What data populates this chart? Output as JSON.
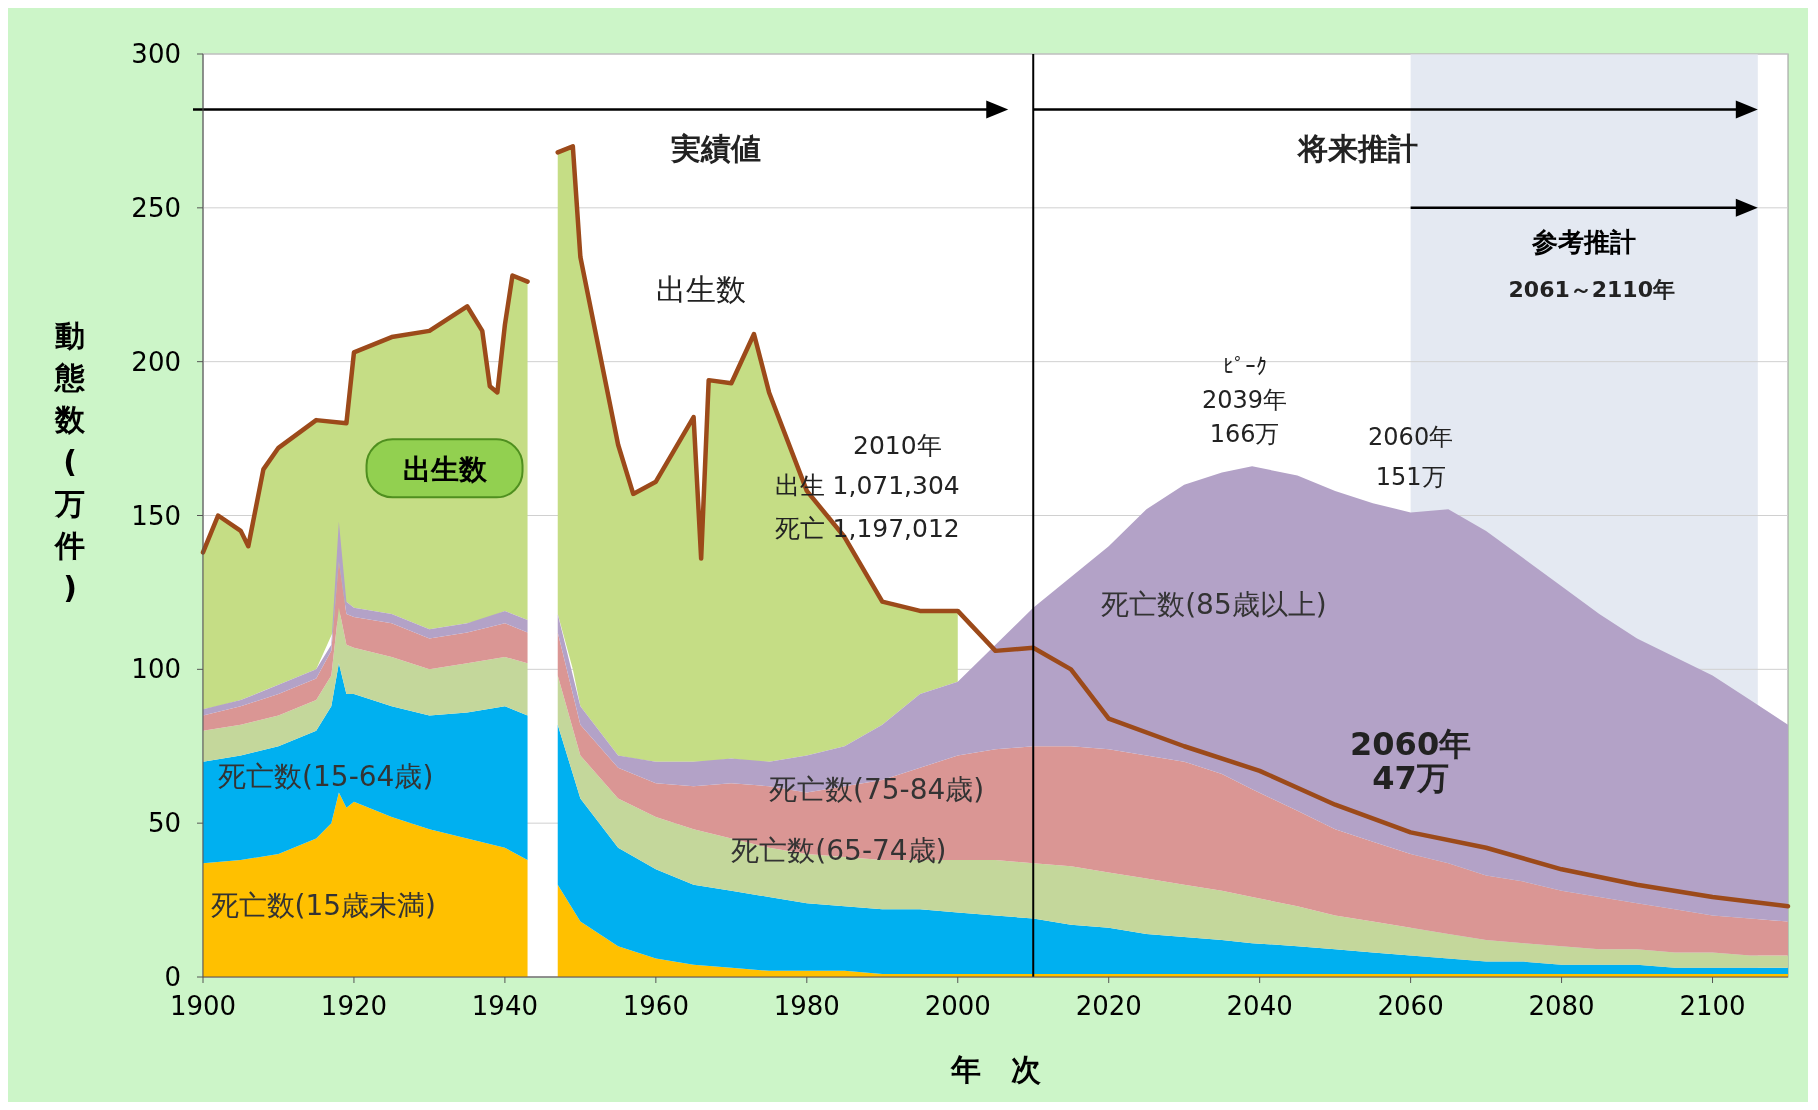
{
  "chart_data": {
    "type": "area",
    "stacked": true,
    "xlabel": "年　次",
    "ylabel": "動態数(万件)",
    "xlim": [
      1900,
      2110
    ],
    "ylim": [
      0,
      300
    ],
    "xticks": [
      1900,
      1920,
      1940,
      1960,
      1980,
      2000,
      2020,
      2040,
      2060,
      2080,
      2100
    ],
    "yticks": [
      0,
      50,
      100,
      150,
      200,
      250,
      300
    ],
    "grid": "y",
    "ref_lines": [
      {
        "axis": "x",
        "value": 2010,
        "color": "#000000"
      }
    ],
    "bands": [
      {
        "axis": "x",
        "from": 2060,
        "to": 2106,
        "label": "参考推計",
        "color": "#e4e9f2"
      }
    ],
    "annotations": [
      "実績値",
      "将来推計",
      "2061～2110年",
      "2010年",
      "出生 1,071,304",
      "死亡 1,197,012",
      "ﾋﾟｰｸ",
      "2039年",
      "166万",
      "2060年",
      "151万",
      "2060年",
      "47万",
      "出生数"
    ],
    "series": [
      {
        "name": "死亡数(15歳未満)",
        "color": "#ffc000",
        "x": [
          1900,
          1905,
          1910,
          1915,
          1917,
          1918,
          1919,
          1920,
          1925,
          1930,
          1935,
          1940,
          1943,
          1944,
          1946,
          1947,
          1950,
          1955,
          1960,
          1965,
          1970,
          1975,
          1980,
          1985,
          1990,
          1995,
          2000,
          2005,
          2010,
          2015,
          2020,
          2025,
          2030,
          2035,
          2039,
          2045,
          2050,
          2055,
          2060,
          2065,
          2070,
          2075,
          2080,
          2085,
          2090,
          2095,
          2100,
          2105,
          2110
        ],
        "values": [
          37,
          38,
          40,
          45,
          50,
          60,
          55,
          57,
          52,
          48,
          45,
          42,
          38,
          null,
          null,
          30,
          18,
          10,
          6,
          4,
          3,
          2,
          2,
          2,
          1,
          1,
          1,
          1,
          1,
          1,
          1,
          1,
          1,
          1,
          1,
          1,
          1,
          1,
          1,
          1,
          1,
          1,
          1,
          1,
          1,
          1,
          1,
          1,
          1
        ]
      },
      {
        "name": "死亡数(15-64歳)",
        "color": "#00b0f0",
        "x": [
          1900,
          1905,
          1910,
          1915,
          1917,
          1918,
          1919,
          1920,
          1925,
          1930,
          1935,
          1940,
          1943,
          1944,
          1946,
          1947,
          1950,
          1955,
          1960,
          1965,
          1970,
          1975,
          1980,
          1985,
          1990,
          1995,
          2000,
          2005,
          2010,
          2015,
          2020,
          2025,
          2030,
          2035,
          2039,
          2045,
          2050,
          2055,
          2060,
          2065,
          2070,
          2075,
          2080,
          2085,
          2090,
          2095,
          2100,
          2105,
          2110
        ],
        "values": [
          33,
          34,
          35,
          35,
          38,
          42,
          37,
          35,
          36,
          37,
          41,
          46,
          47,
          null,
          null,
          52,
          40,
          32,
          29,
          26,
          25,
          24,
          22,
          21,
          21,
          21,
          20,
          19,
          18,
          16,
          15,
          13,
          12,
          11,
          10,
          9,
          8,
          7,
          6,
          5,
          4,
          4,
          3,
          3,
          3,
          2,
          2,
          2,
          2
        ]
      },
      {
        "name": "死亡数(65-74歳)",
        "color": "#c4d79b",
        "x": [
          1900,
          1905,
          1910,
          1915,
          1917,
          1918,
          1919,
          1920,
          1925,
          1930,
          1935,
          1940,
          1943,
          1944,
          1946,
          1947,
          1950,
          1955,
          1960,
          1965,
          1970,
          1975,
          1980,
          1985,
          1990,
          1995,
          2000,
          2005,
          2010,
          2015,
          2020,
          2025,
          2030,
          2035,
          2039,
          2045,
          2050,
          2055,
          2060,
          2065,
          2070,
          2075,
          2080,
          2085,
          2090,
          2095,
          2100,
          2105,
          2110
        ],
        "values": [
          10,
          10,
          10,
          10,
          10,
          18,
          16,
          15,
          16,
          15,
          16,
          16,
          17,
          null,
          null,
          16,
          14,
          16,
          17,
          18,
          17,
          16,
          16,
          16,
          16,
          16,
          17,
          18,
          18,
          19,
          18,
          18,
          17,
          16,
          15,
          13,
          11,
          10,
          9,
          8,
          7,
          6,
          6,
          5,
          5,
          5,
          5,
          4,
          4
        ]
      },
      {
        "name": "死亡数(75-84歳)",
        "color": "#da9694",
        "x": [
          1900,
          1905,
          1910,
          1915,
          1917,
          1918,
          1919,
          1920,
          1925,
          1930,
          1935,
          1940,
          1943,
          1944,
          1946,
          1947,
          1950,
          1955,
          1960,
          1965,
          1970,
          1975,
          1980,
          1985,
          1990,
          1995,
          2000,
          2005,
          2010,
          2015,
          2020,
          2025,
          2030,
          2035,
          2039,
          2045,
          2050,
          2055,
          2060,
          2065,
          2070,
          2075,
          2080,
          2085,
          2090,
          2095,
          2100,
          2105,
          2110
        ],
        "values": [
          5,
          6,
          7,
          7,
          8,
          15,
          10,
          10,
          11,
          10,
          10,
          11,
          10,
          null,
          null,
          14,
          10,
          10,
          11,
          14,
          18,
          20,
          20,
          23,
          26,
          30,
          34,
          36,
          38,
          39,
          40,
          40,
          40,
          38,
          35,
          31,
          28,
          26,
          24,
          23,
          21,
          20,
          18,
          17,
          15,
          14,
          12,
          12,
          11
        ]
      },
      {
        "name": "死亡数(85歳以上)",
        "color": "#b3a2c7",
        "x": [
          1900,
          1905,
          1910,
          1915,
          1917,
          1918,
          1919,
          1920,
          1925,
          1930,
          1935,
          1940,
          1943,
          1944,
          1946,
          1947,
          1950,
          1955,
          1960,
          1965,
          1970,
          1975,
          1980,
          1985,
          1990,
          1995,
          2000,
          2005,
          2010,
          2015,
          2020,
          2025,
          2030,
          2035,
          2039,
          2045,
          2050,
          2055,
          2060,
          2065,
          2070,
          2075,
          2080,
          2085,
          2090,
          2095,
          2100,
          2105,
          2110
        ],
        "values": [
          2,
          2,
          3,
          3,
          2,
          13,
          4,
          3,
          3,
          3,
          3,
          4,
          4,
          null,
          null,
          6,
          6,
          4,
          7,
          8,
          8,
          8,
          12,
          13,
          18,
          24,
          24,
          34,
          45,
          55,
          66,
          80,
          90,
          98,
          105,
          109,
          110,
          110,
          111,
          115,
          112,
          105,
          99,
          92,
          86,
          82,
          78,
          71,
          64
        ]
      },
      {
        "name": "出生数",
        "type": "line",
        "color": "#9c4a1a",
        "x": [
          1900,
          1902,
          1905,
          1906,
          1908,
          1910,
          1915,
          1919,
          1920,
          1925,
          1930,
          1935,
          1937,
          1938,
          1939,
          1940,
          1941,
          1943,
          1944,
          1946,
          1947,
          1949,
          1950,
          1955,
          1957,
          1960,
          1965,
          1966,
          1967,
          1970,
          1973,
          1975,
          1980,
          1985,
          1990,
          1995,
          2000,
          2005,
          2010,
          2015,
          2020,
          2030,
          2040,
          2050,
          2060,
          2070,
          2080,
          2090,
          2100,
          2110
        ],
        "values": [
          138,
          150,
          145,
          140,
          165,
          172,
          181,
          180,
          203,
          208,
          210,
          218,
          210,
          192,
          190,
          212,
          228,
          226,
          null,
          null,
          268,
          270,
          234,
          173,
          157,
          161,
          182,
          136,
          194,
          193,
          209,
          190,
          158,
          143,
          122,
          119,
          119,
          106,
          107,
          100,
          84,
          75,
          67,
          56,
          47,
          42,
          35,
          30,
          26,
          23
        ],
        "lower": [
          87,
          88,
          90,
          91,
          93,
          95,
          100,
          122,
          120,
          118,
          113,
          115,
          116,
          117,
          118,
          119,
          118,
          116,
          null,
          null,
          118,
          100,
          88,
          72,
          71,
          70,
          70,
          70,
          70,
          71,
          70,
          70,
          72,
          75,
          82,
          92,
          96,
          null,
          null,
          null,
          null,
          null,
          null,
          null,
          null,
          null,
          null,
          null,
          null,
          null
        ],
        "upper": [
          138,
          150,
          145,
          140,
          165,
          172,
          181,
          180,
          203,
          208,
          210,
          218,
          210,
          192,
          190,
          212,
          228,
          226,
          null,
          null,
          268,
          270,
          234,
          173,
          157,
          161,
          182,
          136,
          194,
          193,
          209,
          190,
          158,
          143,
          122,
          119,
          119,
          null,
          null,
          null,
          null,
          null,
          null,
          null,
          null,
          null,
          null,
          null,
          null,
          null
        ]
      }
    ]
  }
}
